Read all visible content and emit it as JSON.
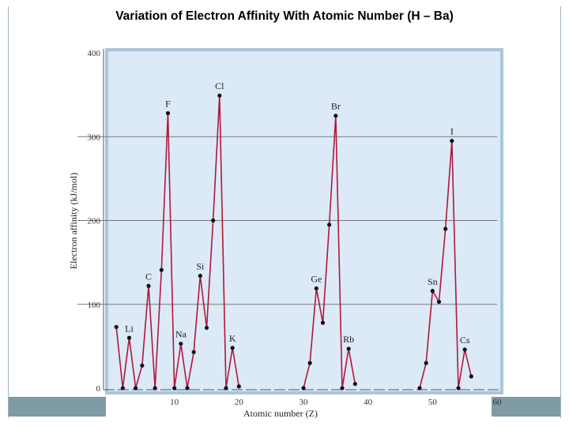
{
  "title": "Variation of Electron Affinity With Atomic Number (H – Ba)",
  "chart_data": {
    "type": "line",
    "title": "Variation of Electron Affinity With Atomic Number (H – Ba)",
    "xlabel": "Atomic number (Z)",
    "ylabel": "Electron affinity (kJ/mol)",
    "xlim": [
      0,
      60
    ],
    "ylim": [
      0,
      400
    ],
    "xticks": [
      10,
      20,
      30,
      40,
      50,
      60
    ],
    "yticks": [
      0,
      100,
      200,
      300,
      400
    ],
    "gridlines_y": [
      100,
      200,
      300
    ],
    "line_color": "#b0183a",
    "point_color": "#111111",
    "plot_bg": "#dce9f7",
    "plot_border": "#a9c6da",
    "series": [
      {
        "x": [
          1,
          2,
          3,
          4,
          5,
          6,
          7,
          8,
          9,
          10,
          11,
          12,
          13,
          14,
          15,
          16,
          17,
          18,
          19,
          20
        ],
        "y": [
          73,
          0,
          60,
          0,
          27,
          122,
          0,
          141,
          328,
          0,
          53,
          0,
          43,
          134,
          72,
          200,
          349,
          0,
          48,
          2
        ]
      },
      {
        "x": [
          30,
          31,
          32,
          33,
          34,
          35,
          36,
          37,
          38
        ],
        "y": [
          0,
          30,
          119,
          78,
          195,
          325,
          0,
          47,
          5
        ]
      },
      {
        "x": [
          48,
          49,
          50,
          51,
          52,
          53,
          54,
          55,
          56
        ],
        "y": [
          0,
          30,
          116,
          103,
          190,
          295,
          0,
          46,
          14
        ]
      }
    ],
    "annotations": [
      {
        "text": "Li",
        "x": 3,
        "y": 60
      },
      {
        "text": "C",
        "x": 6,
        "y": 122
      },
      {
        "text": "F",
        "x": 9,
        "y": 328
      },
      {
        "text": "Na",
        "x": 11,
        "y": 53
      },
      {
        "text": "Si",
        "x": 14,
        "y": 134
      },
      {
        "text": "Cl",
        "x": 17,
        "y": 349
      },
      {
        "text": "K",
        "x": 19,
        "y": 48
      },
      {
        "text": "Ge",
        "x": 32,
        "y": 119
      },
      {
        "text": "Br",
        "x": 35,
        "y": 325
      },
      {
        "text": "Rb",
        "x": 37,
        "y": 47
      },
      {
        "text": "Sn",
        "x": 50,
        "y": 116
      },
      {
        "text": "I",
        "x": 53,
        "y": 295
      },
      {
        "text": "Cs",
        "x": 55,
        "y": 46
      }
    ]
  }
}
